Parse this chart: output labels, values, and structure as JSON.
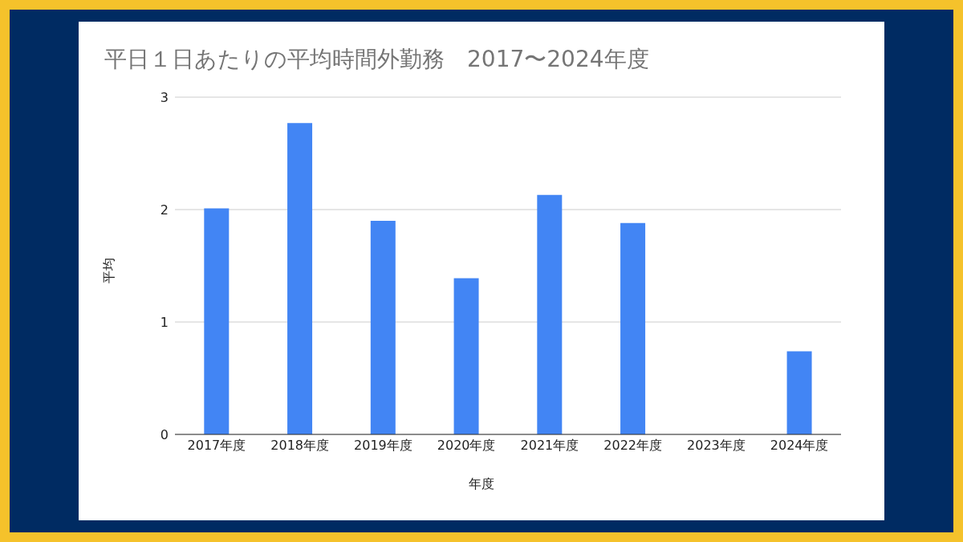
{
  "chart_data": {
    "type": "bar",
    "title": "平日１日あたりの平均時間外勤務　2017〜2024年度",
    "xlabel": "年度",
    "ylabel": "平均",
    "categories": [
      "2017年度",
      "2018年度",
      "2019年度",
      "2020年度",
      "2021年度",
      "2022年度",
      "2023年度",
      "2024年度"
    ],
    "values": [
      2.01,
      2.77,
      1.9,
      1.39,
      2.13,
      1.88,
      null,
      0.74
    ],
    "color": "#4285f4",
    "ylim": [
      0,
      3
    ],
    "yticks": [
      0,
      1,
      2,
      3
    ],
    "grid": "y"
  }
}
